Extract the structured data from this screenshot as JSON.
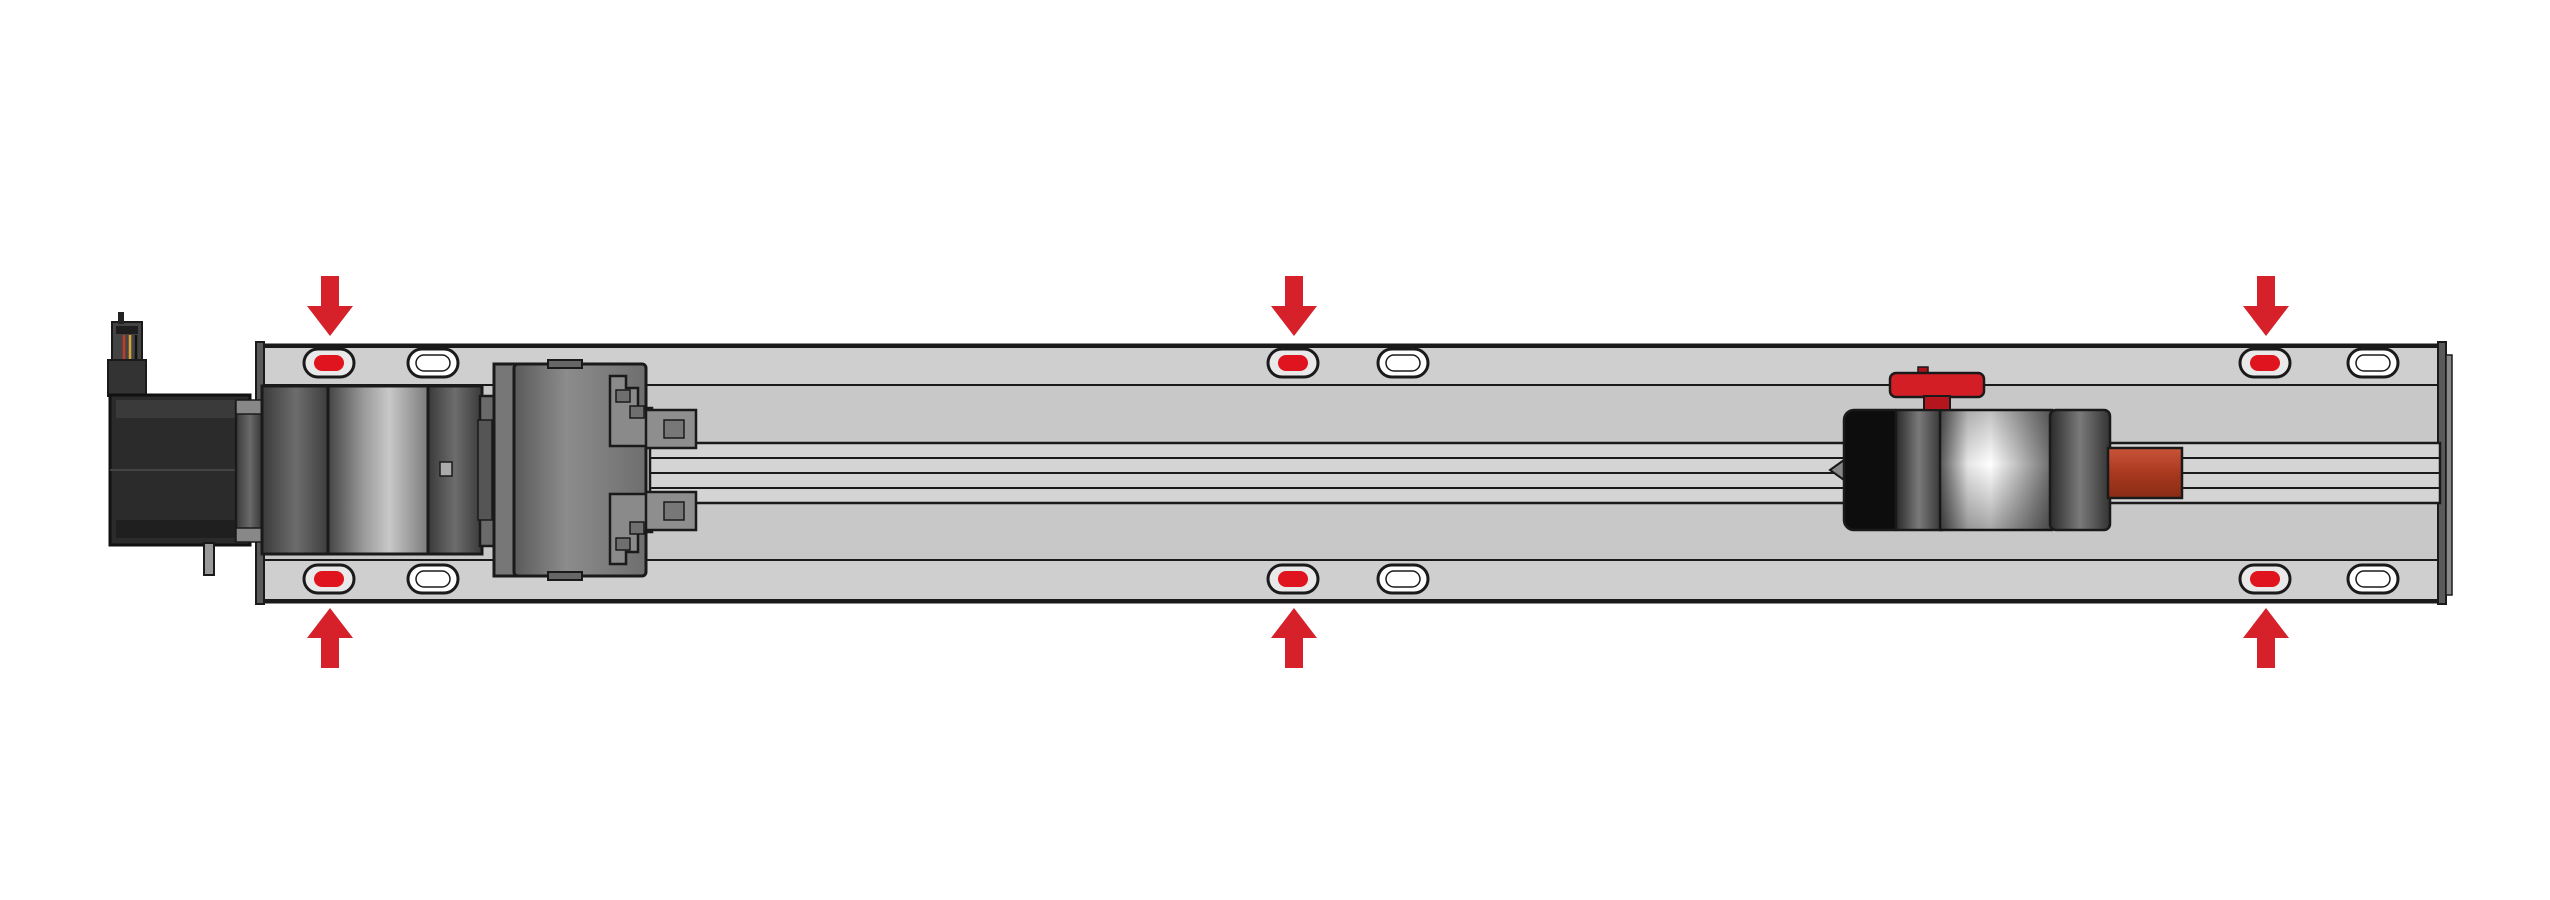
{
  "diagram": {
    "subject": "linear-actuator-top-view",
    "colors": {
      "background": "#ffffff",
      "outline": "#1a1a1a",
      "rail": "#c9c9c9",
      "rail_dark": "#a9a9a9",
      "motor": "#2b2b2b",
      "motor_dark": "#1c1c1c",
      "steel_light": "#e8e8e8",
      "steel_mid": "#9a9a9a",
      "steel_dark": "#3c3c3c",
      "arrow_red": "#d6202a",
      "mark_red": "#e0141e",
      "rod_red": "#b8402a",
      "knob_red": "#d41e26"
    },
    "mounting_points": {
      "count": 6,
      "indicator": "red-arrow",
      "rows": [
        "top",
        "bottom"
      ],
      "columns": 3
    }
  }
}
